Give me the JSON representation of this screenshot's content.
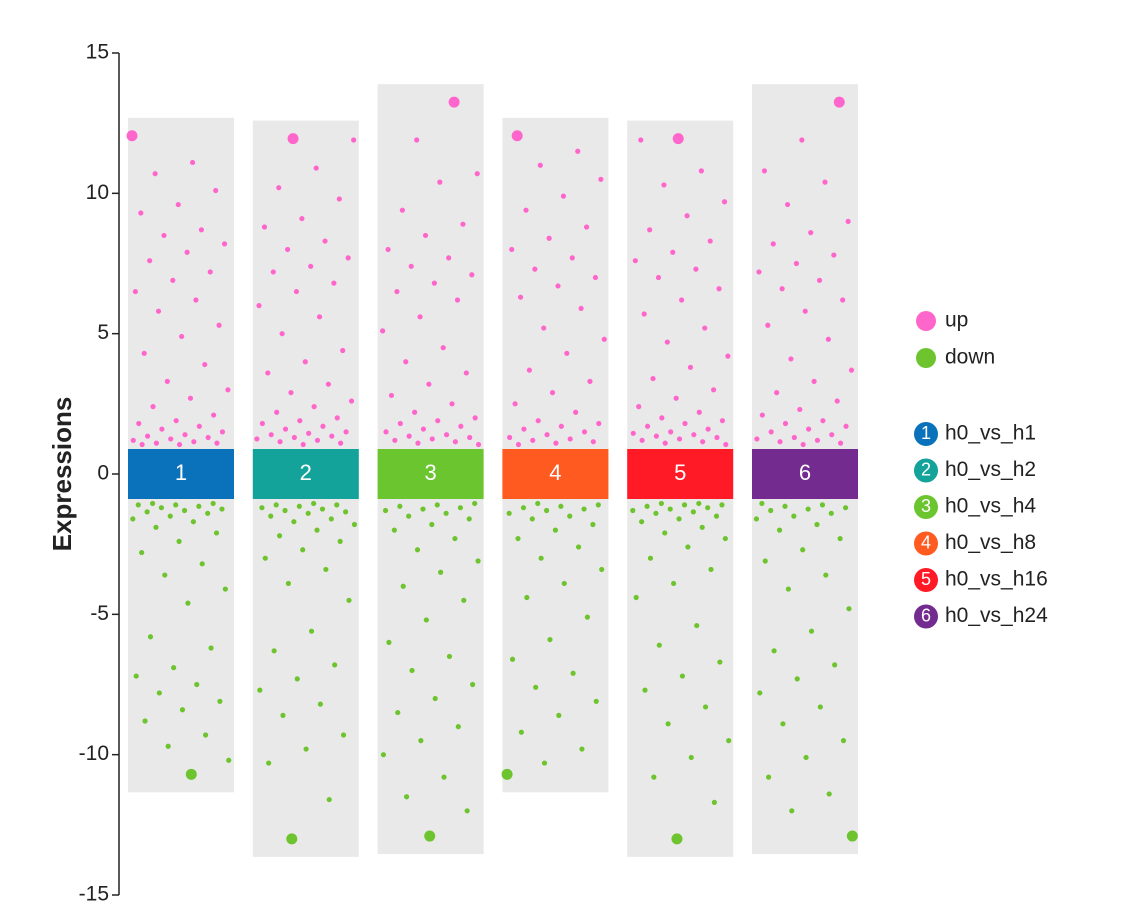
{
  "chart_data": {
    "type": "jitter",
    "y_label": "Expressions",
    "ylim": [
      -15,
      15
    ],
    "yticks": [
      -15,
      -10,
      -5,
      0,
      5,
      10,
      15
    ],
    "categories": [
      "1",
      "2",
      "3",
      "4",
      "5",
      "6"
    ],
    "groups": [
      "h0_vs_h1",
      "h0_vs_h2",
      "h0_vs_h4",
      "h0_vs_h8",
      "h0_vs_h16",
      "h0_vs_h24"
    ],
    "group_colors": [
      "#0a72ba",
      "#13a39b",
      "#6bc52e",
      "#ff5a1f",
      "#ff1a25",
      "#732b90"
    ],
    "band_color": "#e9e9e9",
    "series": [
      {
        "name": "up",
        "color": "#ff66cc",
        "values": [
          [
            12.05,
            11.1,
            10.7,
            10.1,
            9.6,
            9.3,
            8.7,
            8.5,
            8.2,
            7.9,
            7.6,
            7.2,
            6.9,
            6.5,
            6.2,
            5.8,
            5.3,
            4.9,
            4.3,
            3.9,
            3.3,
            3.0,
            2.7,
            2.4,
            2.1,
            1.9,
            1.8,
            1.7,
            1.6,
            1.5,
            1.4,
            1.35,
            1.3,
            1.25,
            1.2,
            1.15,
            1.1,
            1.1,
            1.05,
            1.05
          ],
          [
            11.95,
            11.9,
            10.9,
            10.2,
            9.8,
            9.1,
            8.8,
            8.3,
            8.0,
            7.7,
            7.4,
            7.2,
            6.8,
            6.5,
            6.0,
            5.6,
            5.0,
            4.4,
            4.0,
            3.6,
            3.2,
            2.9,
            2.6,
            2.4,
            2.2,
            2.0,
            1.9,
            1.8,
            1.7,
            1.6,
            1.5,
            1.45,
            1.4,
            1.35,
            1.3,
            1.25,
            1.2,
            1.15,
            1.1,
            1.05
          ],
          [
            13.25,
            11.9,
            10.7,
            10.4,
            9.4,
            8.9,
            8.5,
            8.0,
            7.7,
            7.4,
            7.1,
            6.8,
            6.5,
            6.2,
            5.6,
            5.1,
            4.5,
            4.0,
            3.6,
            3.2,
            2.8,
            2.5,
            2.2,
            2.0,
            1.9,
            1.8,
            1.7,
            1.6,
            1.5,
            1.4,
            1.35,
            1.3,
            1.25,
            1.2,
            1.15,
            1.1,
            1.05
          ],
          [
            12.05,
            11.5,
            11.0,
            10.5,
            9.9,
            9.4,
            8.8,
            8.4,
            8.0,
            7.7,
            7.3,
            7.0,
            6.7,
            6.3,
            5.9,
            5.2,
            4.8,
            4.3,
            3.7,
            3.3,
            2.9,
            2.5,
            2.2,
            1.9,
            1.8,
            1.7,
            1.6,
            1.5,
            1.4,
            1.3,
            1.25,
            1.2,
            1.15,
            1.1,
            1.05
          ],
          [
            11.95,
            11.9,
            10.8,
            10.3,
            9.7,
            9.2,
            8.7,
            8.3,
            7.9,
            7.6,
            7.3,
            7.0,
            6.6,
            6.2,
            5.7,
            5.2,
            4.7,
            4.2,
            3.8,
            3.4,
            3.0,
            2.7,
            2.4,
            2.2,
            2.0,
            1.9,
            1.8,
            1.7,
            1.6,
            1.5,
            1.45,
            1.4,
            1.35,
            1.3,
            1.25,
            1.2,
            1.15,
            1.1,
            1.05
          ],
          [
            13.25,
            11.9,
            10.8,
            10.4,
            9.6,
            9.0,
            8.6,
            8.2,
            7.8,
            7.5,
            7.2,
            6.9,
            6.6,
            6.2,
            5.8,
            5.3,
            4.8,
            4.1,
            3.7,
            3.3,
            2.9,
            2.6,
            2.3,
            2.1,
            1.9,
            1.8,
            1.7,
            1.6,
            1.5,
            1.4,
            1.3,
            1.25,
            1.2,
            1.15,
            1.1,
            1.05
          ]
        ]
      },
      {
        "name": "down",
        "color": "#6ec42e",
        "values": [
          [
            -1.05,
            -1.05,
            -1.1,
            -1.1,
            -1.15,
            -1.2,
            -1.25,
            -1.3,
            -1.35,
            -1.4,
            -1.5,
            -1.6,
            -1.7,
            -1.9,
            -2.1,
            -2.4,
            -2.8,
            -3.2,
            -3.6,
            -4.1,
            -4.6,
            -5.8,
            -6.2,
            -6.9,
            -7.2,
            -7.5,
            -7.8,
            -8.1,
            -8.4,
            -8.8,
            -9.3,
            -9.7,
            -10.2,
            -10.7
          ],
          [
            -1.05,
            -1.1,
            -1.1,
            -1.15,
            -1.2,
            -1.25,
            -1.3,
            -1.35,
            -1.4,
            -1.5,
            -1.6,
            -1.7,
            -1.8,
            -2.0,
            -2.2,
            -2.4,
            -2.7,
            -3.0,
            -3.4,
            -3.9,
            -4.5,
            -5.6,
            -6.3,
            -6.8,
            -7.3,
            -7.7,
            -8.2,
            -8.6,
            -9.3,
            -9.8,
            -10.3,
            -11.6,
            -13.0
          ],
          [
            -1.05,
            -1.1,
            -1.15,
            -1.2,
            -1.25,
            -1.3,
            -1.4,
            -1.5,
            -1.6,
            -1.8,
            -2.0,
            -2.3,
            -2.7,
            -3.1,
            -3.5,
            -4.0,
            -4.5,
            -5.2,
            -6.0,
            -6.5,
            -7.0,
            -7.5,
            -8.0,
            -8.5,
            -9.0,
            -9.5,
            -10.0,
            -10.8,
            -11.5,
            -12.0,
            -12.9
          ],
          [
            -1.05,
            -1.1,
            -1.15,
            -1.2,
            -1.25,
            -1.3,
            -1.4,
            -1.5,
            -1.6,
            -1.8,
            -2.0,
            -2.3,
            -2.6,
            -3.0,
            -3.4,
            -3.9,
            -4.4,
            -5.1,
            -5.9,
            -6.6,
            -7.1,
            -7.6,
            -8.1,
            -8.6,
            -9.2,
            -9.8,
            -10.3,
            -10.7
          ],
          [
            -1.05,
            -1.05,
            -1.1,
            -1.1,
            -1.15,
            -1.2,
            -1.25,
            -1.3,
            -1.35,
            -1.4,
            -1.5,
            -1.6,
            -1.7,
            -1.9,
            -2.1,
            -2.3,
            -2.6,
            -3.0,
            -3.4,
            -3.9,
            -4.4,
            -5.4,
            -6.1,
            -6.7,
            -7.2,
            -7.7,
            -8.3,
            -8.9,
            -9.5,
            -10.1,
            -10.8,
            -11.7,
            -13.0
          ],
          [
            -1.05,
            -1.1,
            -1.15,
            -1.2,
            -1.25,
            -1.3,
            -1.4,
            -1.5,
            -1.6,
            -1.8,
            -2.0,
            -2.3,
            -2.7,
            -3.1,
            -3.6,
            -4.1,
            -4.8,
            -5.6,
            -6.3,
            -6.8,
            -7.3,
            -7.8,
            -8.3,
            -8.9,
            -9.5,
            -10.1,
            -10.8,
            -11.4,
            -12.0,
            -12.9
          ]
        ]
      }
    ]
  }
}
